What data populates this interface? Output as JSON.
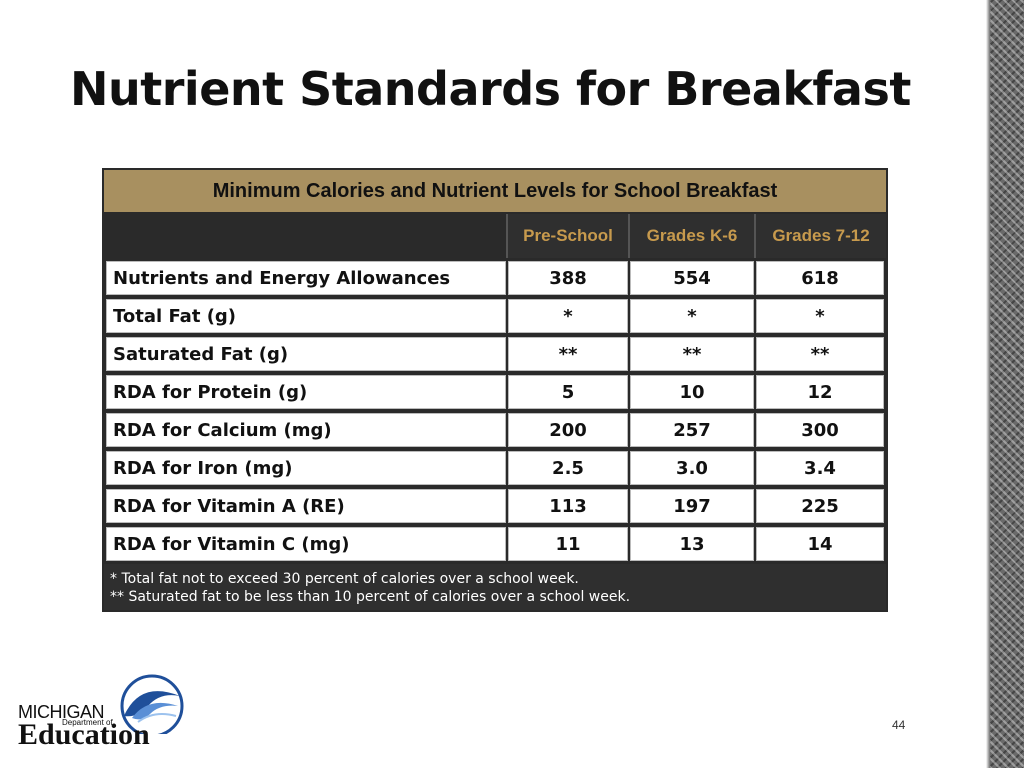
{
  "slide": {
    "title": "Nutrient Standards for Breakfast",
    "page_number": "44"
  },
  "table": {
    "header": "Minimum Calories and Nutrient Levels for School Breakfast",
    "columns": [
      "Pre-School",
      "Grades K-6",
      "Grades 7-12"
    ],
    "rows": [
      {
        "label": "Nutrients and Energy Allowances",
        "values": [
          "388",
          "554",
          "618"
        ]
      },
      {
        "label": "Total Fat (g)",
        "values": [
          "*",
          "*",
          "*"
        ]
      },
      {
        "label": "Saturated Fat (g)",
        "values": [
          "**",
          "**",
          "**"
        ]
      },
      {
        "label": "RDA for Protein (g)",
        "values": [
          "5",
          "10",
          "12"
        ]
      },
      {
        "label": "RDA for Calcium (mg)",
        "values": [
          "200",
          "257",
          "300"
        ]
      },
      {
        "label": "RDA for Iron (mg)",
        "values": [
          "2.5",
          "3.0",
          "3.4"
        ]
      },
      {
        "label": "RDA for Vitamin A (RE)",
        "values": [
          "113",
          "197",
          "225"
        ]
      },
      {
        "label": "RDA for Vitamin C (mg)",
        "values": [
          "11",
          "13",
          "14"
        ]
      }
    ],
    "footnotes": [
      "* Total fat not to exceed 30 percent of calories over a school week.",
      "** Saturated fat to be less than 10 percent of calories over a school week."
    ]
  },
  "logo": {
    "line1": "MICHIGAN",
    "line2": "Department of",
    "line3": "Education"
  },
  "colors": {
    "header_tan": "#a89060",
    "column_header_text": "#c79a4d",
    "dark_bg": "#2f2f2f",
    "logo_blue": "#1f4f9a"
  }
}
